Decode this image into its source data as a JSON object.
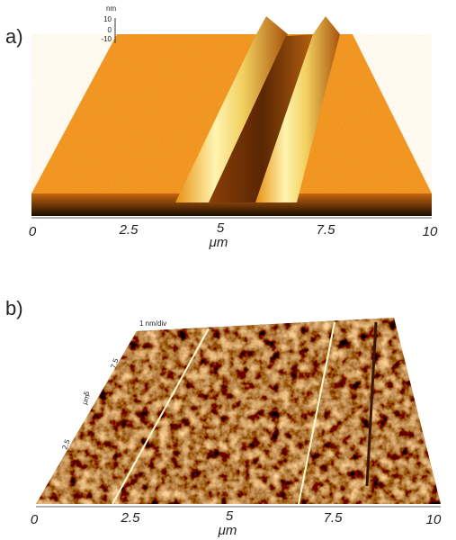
{
  "panels": [
    {
      "label": "a)",
      "x_axis": {
        "label": "μm",
        "ticks": [
          "0",
          "2.5",
          "5",
          "7.5",
          "10"
        ]
      },
      "z_axis": {
        "label": "nm",
        "ticks": [
          "10",
          "0",
          "-10"
        ]
      }
    },
    {
      "label": "b)",
      "scale": "1 nm/div",
      "x_axis": {
        "label": "μm",
        "ticks": [
          "0",
          "2.5",
          "5",
          "7.5",
          "10"
        ]
      },
      "y_axis": {
        "label": "μm",
        "ticks": [
          "2.5",
          "5",
          "7.5"
        ]
      }
    }
  ]
}
